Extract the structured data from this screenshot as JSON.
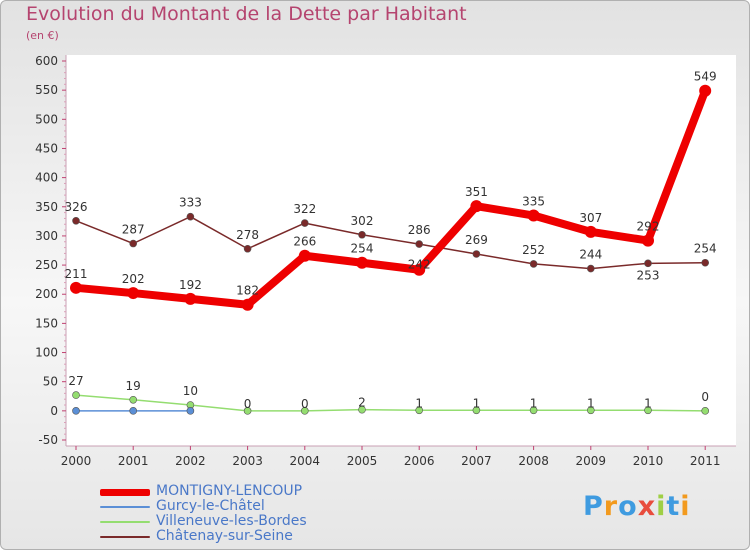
{
  "chart_data": {
    "type": "line",
    "title": "Evolution du Montant de la Dette par Habitant",
    "unit_label": "(en €)",
    "x": [
      "2000",
      "2001",
      "2002",
      "2003",
      "2004",
      "2005",
      "2006",
      "2007",
      "2008",
      "2009",
      "2010",
      "2011"
    ],
    "ylim": [
      -50,
      600
    ],
    "yticks": [
      -50,
      0,
      50,
      100,
      150,
      200,
      250,
      300,
      350,
      400,
      450,
      500,
      550,
      600
    ],
    "grid": false,
    "legend_position": "bottom-left",
    "series": [
      {
        "name": "MONTIGNY-LENCOUP",
        "color": "#ee0000",
        "values": [
          211,
          202,
          192,
          182,
          266,
          254,
          242,
          351,
          335,
          307,
          292,
          549
        ],
        "labels": [
          "211",
          "202",
          "192",
          "182",
          "266",
          "254",
          "242",
          "351",
          "335",
          "307",
          "292",
          "549"
        ]
      },
      {
        "name": "Gurcy-le-Châtel",
        "color": "#5b8fd6",
        "values": [
          0,
          0,
          0,
          null,
          null,
          null,
          null,
          null,
          null,
          null,
          null,
          null
        ],
        "labels": [
          "",
          "",
          "",
          "",
          "",
          "",
          "",
          "",
          "",
          "",
          "",
          ""
        ]
      },
      {
        "name": "Villeneuve-les-Bordes",
        "color": "#94dd70",
        "values": [
          27,
          19,
          10,
          0,
          0,
          2,
          1,
          1,
          1,
          1,
          1,
          0
        ],
        "labels": [
          "27",
          "19",
          "10",
          "0",
          "0",
          "2",
          "1",
          "1",
          "1",
          "1",
          "1",
          "0"
        ]
      },
      {
        "name": "Châtenay-sur-Seine",
        "color": "#7a2a2a",
        "values": [
          326,
          287,
          333,
          278,
          322,
          302,
          286,
          269,
          252,
          244,
          253,
          254
        ],
        "labels": [
          "326",
          "287",
          "333",
          "278",
          "322",
          "302",
          "286",
          "269",
          "252",
          "244",
          "253",
          "254"
        ]
      }
    ]
  },
  "logo": {
    "letters": [
      "P",
      "r",
      "o",
      "x",
      "i",
      "t",
      "i"
    ],
    "colors": [
      "#3f9be0",
      "#f29a1e",
      "#3f9be0",
      "#e84c3d",
      "#9fcf45",
      "#3f9be0",
      "#f29a1e"
    ]
  }
}
